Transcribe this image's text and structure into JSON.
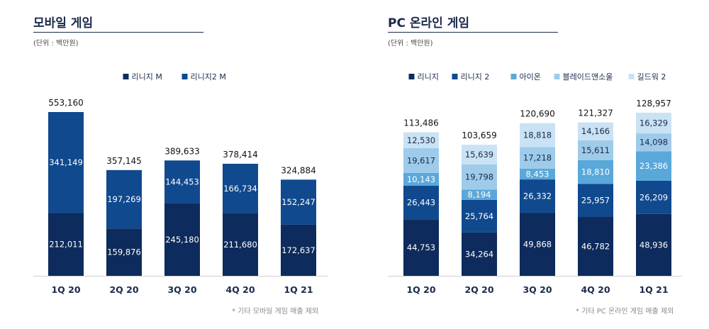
{
  "colors": {
    "navy": "#0d2b5c",
    "blue": "#10498e",
    "mid_blue": "#5aa8da",
    "light_blue": "#9fcbea",
    "pale_blue": "#c9e2f4"
  },
  "left": {
    "title": "모바일 게임",
    "unit": "(단위 : 백만원)",
    "note": "* 기타 모바일 게임 매출 제외"
  },
  "right": {
    "title": "PC 온라인 게임",
    "unit": "(단위 : 백만원)",
    "note": "* 기타 PC 온라인 게임 매출 제외"
  },
  "chart_data": [
    {
      "type": "bar",
      "stacked": true,
      "categories": [
        "1Q 20",
        "2Q 20",
        "3Q 20",
        "4Q 20",
        "1Q 21"
      ],
      "series": [
        {
          "name": "리니지 M",
          "color": "#0d2b5c",
          "label_color": "#ffffff",
          "values": [
            212011,
            159876,
            245180,
            211680,
            172637
          ]
        },
        {
          "name": "리니지2 M",
          "color": "#10498e",
          "label_color": "#ffffff",
          "values": [
            341149,
            197269,
            144453,
            166734,
            152247
          ]
        }
      ],
      "totals": [
        553160,
        357145,
        389633,
        378414,
        324884
      ],
      "legend": "top",
      "ylim": [
        0,
        553160
      ]
    },
    {
      "type": "bar",
      "stacked": true,
      "categories": [
        "1Q 20",
        "2Q 20",
        "3Q 20",
        "4Q 20",
        "1Q 21"
      ],
      "series": [
        {
          "name": "리니지",
          "color": "#0d2b5c",
          "label_color": "#ffffff",
          "values": [
            44753,
            34264,
            49868,
            46782,
            48936
          ]
        },
        {
          "name": "리니지 2",
          "color": "#10498e",
          "label_color": "#ffffff",
          "values": [
            26443,
            25764,
            26332,
            25957,
            26209
          ]
        },
        {
          "name": "아이온",
          "color": "#5aa8da",
          "label_color": "#ffffff",
          "values": [
            10143,
            8194,
            8453,
            18810,
            23386
          ]
        },
        {
          "name": "블레이드앤소울",
          "color": "#9fcbea",
          "label_color": "#1b2a4a",
          "values": [
            19617,
            19798,
            17218,
            15611,
            14098
          ]
        },
        {
          "name": "길드워 2",
          "color": "#c9e2f4",
          "label_color": "#1b2a4a",
          "values": [
            12530,
            15639,
            18818,
            14166,
            16329
          ]
        }
      ],
      "totals": [
        113486,
        103659,
        120690,
        121327,
        128957
      ],
      "legend": "top",
      "ylim": [
        0,
        128957
      ]
    }
  ]
}
